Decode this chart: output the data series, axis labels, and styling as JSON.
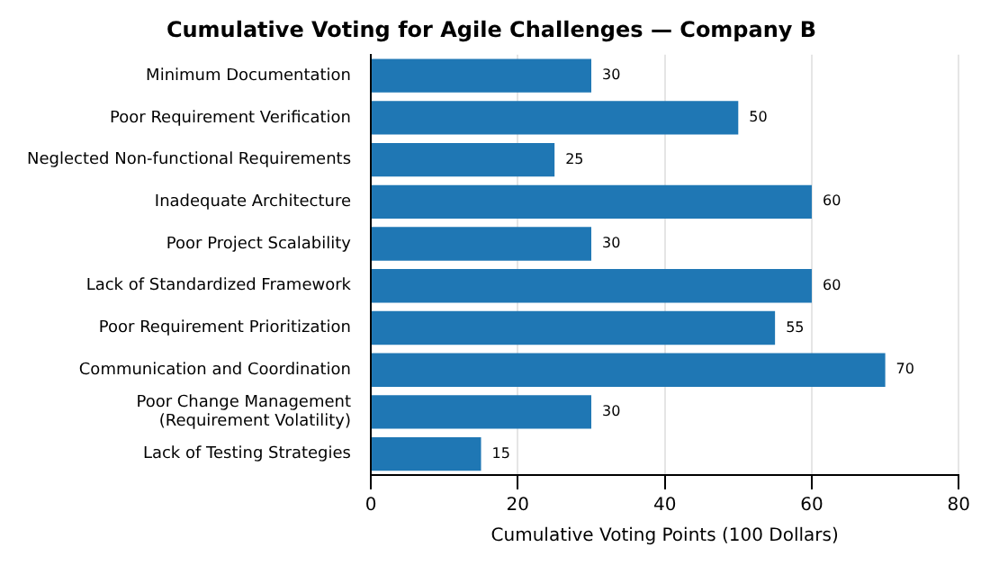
{
  "chart_data": {
    "type": "bar",
    "orientation": "horizontal",
    "title": "Cumulative Voting for Agile Challenges — Company B",
    "xlabel": "Cumulative Voting Points (100 Dollars)",
    "categories": [
      "Minimum Documentation",
      "Poor Requirement Verification",
      "Neglected Non-functional Requirements",
      "Inadequate Architecture",
      "Poor Project Scalability",
      "Lack of Standardized Framework",
      "Poor Requirement Prioritization",
      "Communication and Coordination",
      "Poor Change Management\n(Requirement Volatility)",
      "Lack of Testing Strategies"
    ],
    "values": [
      30,
      50,
      25,
      60,
      30,
      60,
      55,
      70,
      30,
      15
    ],
    "color": "#1f77b4",
    "xlim": [
      0,
      80
    ],
    "xticks": [
      0,
      20,
      40,
      60,
      80
    ],
    "grid": "x",
    "data_labels": true
  }
}
